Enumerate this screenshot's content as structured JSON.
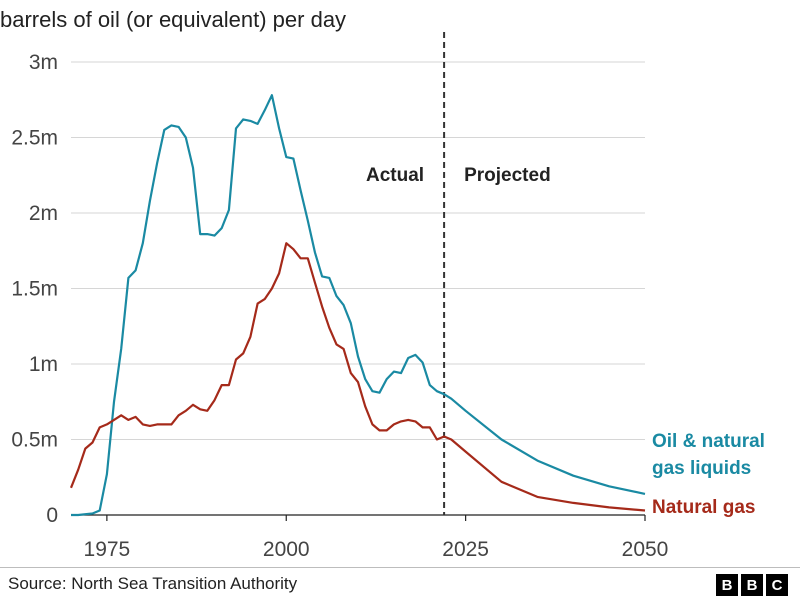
{
  "chart_data": {
    "type": "line",
    "ylabel": "barrels of oil (or equivalent) per day",
    "x_ticks": [
      "1975",
      "2000",
      "2025",
      "2050"
    ],
    "x_tick_values": [
      1975,
      2000,
      2025,
      2050
    ],
    "xlim": [
      1970,
      2050
    ],
    "ylim": [
      0,
      3000000
    ],
    "y_ticks": [
      "0",
      "0.5m",
      "1m",
      "1.5m",
      "2m",
      "2.5m",
      "3m"
    ],
    "y_tick_values": [
      0,
      500000,
      1000000,
      1500000,
      2000000,
      2500000,
      3000000
    ],
    "grid": true,
    "divider_year": 2022,
    "region_labels": {
      "left": "Actual",
      "right": "Projected"
    },
    "series": [
      {
        "name": "Oil & natural gas liquids",
        "name_lines": [
          "Oil & natural",
          "gas liquids"
        ],
        "color": "#1a8aa3",
        "x": [
          1970,
          1971,
          1972,
          1973,
          1974,
          1975,
          1976,
          1977,
          1978,
          1979,
          1980,
          1981,
          1982,
          1983,
          1984,
          1985,
          1986,
          1987,
          1988,
          1989,
          1990,
          1991,
          1992,
          1993,
          1994,
          1995,
          1996,
          1997,
          1998,
          1999,
          2000,
          2001,
          2002,
          2003,
          2004,
          2005,
          2006,
          2007,
          2008,
          2009,
          2010,
          2011,
          2012,
          2013,
          2014,
          2015,
          2016,
          2017,
          2018,
          2019,
          2020,
          2021,
          2022,
          2023,
          2025,
          2030,
          2035,
          2040,
          2045,
          2050
        ],
        "y": [
          0,
          0,
          5000,
          10000,
          30000,
          270000,
          750000,
          1100000,
          1570000,
          1620000,
          1800000,
          2080000,
          2330000,
          2550000,
          2580000,
          2570000,
          2500000,
          2300000,
          1860000,
          1860000,
          1850000,
          1900000,
          2020000,
          2560000,
          2620000,
          2610000,
          2590000,
          2680000,
          2780000,
          2560000,
          2370000,
          2360000,
          2150000,
          1950000,
          1740000,
          1580000,
          1570000,
          1450000,
          1390000,
          1270000,
          1050000,
          900000,
          820000,
          810000,
          900000,
          950000,
          940000,
          1040000,
          1060000,
          1010000,
          860000,
          820000,
          800000,
          770000,
          690000,
          500000,
          360000,
          260000,
          190000,
          140000
        ]
      },
      {
        "name": "Natural gas",
        "color": "#a52a1a",
        "x": [
          1970,
          1971,
          1972,
          1973,
          1974,
          1975,
          1976,
          1977,
          1978,
          1979,
          1980,
          1981,
          1982,
          1983,
          1984,
          1985,
          1986,
          1987,
          1988,
          1989,
          1990,
          1991,
          1992,
          1993,
          1994,
          1995,
          1996,
          1997,
          1998,
          1999,
          2000,
          2001,
          2002,
          2003,
          2004,
          2005,
          2006,
          2007,
          2008,
          2009,
          2010,
          2011,
          2012,
          2013,
          2014,
          2015,
          2016,
          2017,
          2018,
          2019,
          2020,
          2021,
          2022,
          2023,
          2025,
          2030,
          2035,
          2040,
          2045,
          2050
        ],
        "y": [
          180000,
          300000,
          440000,
          480000,
          580000,
          600000,
          630000,
          660000,
          630000,
          650000,
          600000,
          590000,
          600000,
          600000,
          600000,
          660000,
          690000,
          730000,
          700000,
          690000,
          760000,
          860000,
          860000,
          1030000,
          1070000,
          1180000,
          1400000,
          1430000,
          1500000,
          1600000,
          1800000,
          1760000,
          1700000,
          1700000,
          1540000,
          1380000,
          1240000,
          1130000,
          1100000,
          940000,
          880000,
          720000,
          600000,
          560000,
          560000,
          600000,
          620000,
          630000,
          620000,
          580000,
          580000,
          500000,
          520000,
          500000,
          420000,
          220000,
          120000,
          80000,
          50000,
          30000
        ]
      }
    ]
  },
  "footer": {
    "source": "Source: North Sea Transition Authority",
    "logo_letters": [
      "B",
      "B",
      "C"
    ]
  }
}
